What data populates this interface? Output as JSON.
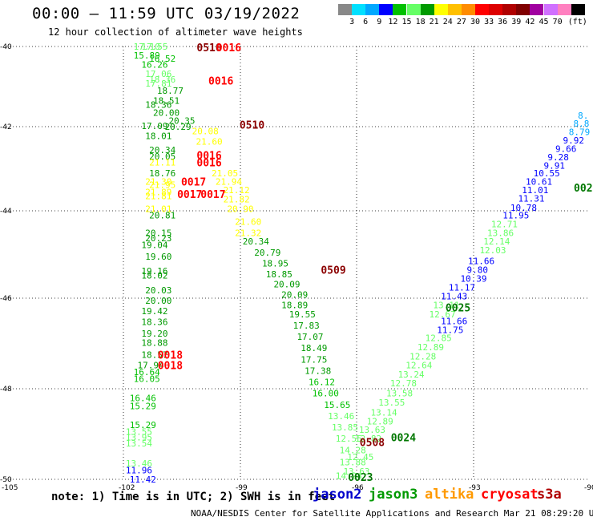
{
  "chart_data": {
    "type": "scatter",
    "title": "00:00 – 11:59 UTC 03/19/2022",
    "subtitle": "12 hour collection of altimeter wave heights",
    "note": "note: 1) Time is in UTC; 2) SWH is in feet",
    "credit": "NOAA/NESDIS Center for Satellite Applications and Research   Mar 21 08:29:20 UTC 2022",
    "xlim": [
      -105,
      -90
    ],
    "ylim": [
      -50,
      -40
    ],
    "x_ticks": [
      "-105",
      "-102",
      "-99",
      "-96",
      "-93",
      "-90"
    ],
    "y_ticks": [
      "-40",
      "-42",
      "-44",
      "-46",
      "-48",
      "-50"
    ],
    "grid": true,
    "colorbar": {
      "unit": "(ft)",
      "colors": [
        "#888888",
        "#00e0ff",
        "#00a8ff",
        "#0000ff",
        "#00c000",
        "#66ff66",
        "#009a00",
        "#ffff00",
        "#ffc000",
        "#ff8c00",
        "#ff0000",
        "#dd0000",
        "#b00000",
        "#800000",
        "#a000a0",
        "#d070ff",
        "#ff80c0",
        "#000000"
      ],
      "labels": [
        "3",
        "6",
        "9",
        "12",
        "15",
        "18",
        "21",
        "24",
        "27",
        "30",
        "33",
        "36",
        "39",
        "42",
        "45",
        "70"
      ]
    },
    "satellites": [
      {
        "name": "jason2",
        "color": "#0000cc"
      },
      {
        "name": "jason3",
        "color": "#009900"
      },
      {
        "name": "altika",
        "color": "#ff9900"
      },
      {
        "name": "cryosat",
        "color": "#ff0000"
      },
      {
        "name": "s3a",
        "color": "#b00000"
      }
    ],
    "time_labels": [
      {
        "text": "0510",
        "lon": -99.8,
        "lat": -40.02,
        "color": "#8b0000"
      },
      {
        "text": "0016",
        "lon": -99.3,
        "lat": -40.02,
        "color": "#ff0000"
      },
      {
        "text": "0016",
        "lon": -99.5,
        "lat": -40.85,
        "color": "#ff0000"
      },
      {
        "text": "0510",
        "lon": -98.7,
        "lat": -41.95,
        "color": "#8b0000"
      },
      {
        "text": "0016",
        "lon": -99.8,
        "lat": -42.68,
        "color": "#ff0000"
      },
      {
        "text": "0016",
        "lon": -99.8,
        "lat": -42.85,
        "color": "#ff0000"
      },
      {
        "text": "0017",
        "lon": -100.2,
        "lat": -43.3,
        "color": "#ff0000"
      },
      {
        "text": "0017",
        "lon": -100.3,
        "lat": -43.6,
        "color": "#ff0000"
      },
      {
        "text": "0017",
        "lon": -99.7,
        "lat": -43.6,
        "color": "#ff0000"
      },
      {
        "text": "0509",
        "lon": -96.6,
        "lat": -45.35,
        "color": "#8b0000"
      },
      {
        "text": "0018",
        "lon": -100.8,
        "lat": -47.25,
        "color": "#ff0000"
      },
      {
        "text": "0018",
        "lon": -100.8,
        "lat": -47.48,
        "color": "#ff0000"
      },
      {
        "text": "0508",
        "lon": -95.6,
        "lat": -49.18,
        "color": "#8b0000"
      },
      {
        "text": "0024",
        "lon": -94.8,
        "lat": -49.07,
        "color": "#007700"
      },
      {
        "text": "0023",
        "lon": -95.9,
        "lat": -49.95,
        "color": "#007700"
      },
      {
        "text": "0025",
        "lon": -93.4,
        "lat": -46.2,
        "color": "#007700"
      },
      {
        "text": "002",
        "lon": -90.15,
        "lat": -43.45,
        "color": "#007700"
      }
    ],
    "points": [
      {
        "lon": -101.4,
        "lat": -40.0,
        "v": "17.10",
        "c": "#66ff66"
      },
      {
        "lon": -101.2,
        "lat": -40.0,
        "v": "17.55",
        "c": "#66ff66"
      },
      {
        "lon": -101.4,
        "lat": -40.22,
        "v": "15.89",
        "c": "#00c000"
      },
      {
        "lon": -101.0,
        "lat": -40.3,
        "v": "16.52",
        "c": "#00c000"
      },
      {
        "lon": -101.2,
        "lat": -40.45,
        "v": "16.26",
        "c": "#00c000"
      },
      {
        "lon": -101.1,
        "lat": -40.68,
        "v": "17.06",
        "c": "#66ff66"
      },
      {
        "lon": -101.0,
        "lat": -40.82,
        "v": "18.36",
        "c": "#66ff66"
      },
      {
        "lon": -101.1,
        "lat": -40.92,
        "v": "17.81",
        "c": "#66ff66"
      },
      {
        "lon": -100.8,
        "lat": -41.1,
        "v": "18.77",
        "c": "#009a00"
      },
      {
        "lon": -100.9,
        "lat": -41.35,
        "v": "18.51",
        "c": "#009a00"
      },
      {
        "lon": -101.1,
        "lat": -41.45,
        "v": "18.36",
        "c": "#009a00"
      },
      {
        "lon": -100.9,
        "lat": -41.65,
        "v": "20.00",
        "c": "#009a00"
      },
      {
        "lon": -100.5,
        "lat": -41.85,
        "v": "20.35",
        "c": "#009a00"
      },
      {
        "lon": -101.2,
        "lat": -41.98,
        "v": "17.09",
        "c": "#009a00"
      },
      {
        "lon": -100.6,
        "lat": -42.0,
        "v": "20.29",
        "c": "#009a00"
      },
      {
        "lon": -99.9,
        "lat": -42.1,
        "v": "20.08",
        "c": "#ffff00"
      },
      {
        "lon": -101.1,
        "lat": -42.22,
        "v": "18.01",
        "c": "#009a00"
      },
      {
        "lon": -99.8,
        "lat": -42.35,
        "v": "21.60",
        "c": "#ffff00"
      },
      {
        "lon": -101.0,
        "lat": -42.55,
        "v": "20.34",
        "c": "#009a00"
      },
      {
        "lon": -101.0,
        "lat": -42.7,
        "v": "20.05",
        "c": "#009a00"
      },
      {
        "lon": -101.0,
        "lat": -42.85,
        "v": "21.11",
        "c": "#ffff00"
      },
      {
        "lon": -101.0,
        "lat": -43.1,
        "v": "18.76",
        "c": "#009a00"
      },
      {
        "lon": -99.4,
        "lat": -43.1,
        "v": "21.05",
        "c": "#ffff00"
      },
      {
        "lon": -101.1,
        "lat": -43.3,
        "v": "21.30",
        "c": "#ffff00"
      },
      {
        "lon": -101.0,
        "lat": -43.38,
        "v": "21.95",
        "c": "#ffff00"
      },
      {
        "lon": -99.3,
        "lat": -43.3,
        "v": "21.94",
        "c": "#ffff00"
      },
      {
        "lon": -99.1,
        "lat": -43.5,
        "v": "21.12",
        "c": "#ffff00"
      },
      {
        "lon": -101.1,
        "lat": -43.55,
        "v": "21.89",
        "c": "#ffff00"
      },
      {
        "lon": -101.1,
        "lat": -43.65,
        "v": "21.81",
        "c": "#ffff00"
      },
      {
        "lon": -99.1,
        "lat": -43.72,
        "v": "21.82",
        "c": "#ffff00"
      },
      {
        "lon": -101.1,
        "lat": -43.95,
        "v": "21.01",
        "c": "#ffff00"
      },
      {
        "lon": -99.0,
        "lat": -43.95,
        "v": "20.90",
        "c": "#ffff00"
      },
      {
        "lon": -101.0,
        "lat": -44.1,
        "v": "20.81",
        "c": "#009a00"
      },
      {
        "lon": -98.8,
        "lat": -44.25,
        "v": "21.60",
        "c": "#ffff00"
      },
      {
        "lon": -98.8,
        "lat": -44.5,
        "v": "21.32",
        "c": "#ffff00"
      },
      {
        "lon": -101.1,
        "lat": -44.5,
        "v": "20.15",
        "c": "#009a00"
      },
      {
        "lon": -101.1,
        "lat": -44.62,
        "v": "20.23",
        "c": "#009a00"
      },
      {
        "lon": -101.2,
        "lat": -44.78,
        "v": "19.04",
        "c": "#009a00"
      },
      {
        "lon": -98.6,
        "lat": -44.7,
        "v": "20.34",
        "c": "#009a00"
      },
      {
        "lon": -101.1,
        "lat": -45.05,
        "v": "19.60",
        "c": "#009a00"
      },
      {
        "lon": -98.3,
        "lat": -44.95,
        "v": "20.79",
        "c": "#009a00"
      },
      {
        "lon": -98.1,
        "lat": -45.2,
        "v": "18.95",
        "c": "#009a00"
      },
      {
        "lon": -101.2,
        "lat": -45.38,
        "v": "19.16",
        "c": "#009a00"
      },
      {
        "lon": -101.2,
        "lat": -45.48,
        "v": "18.02",
        "c": "#009a00"
      },
      {
        "lon": -98.0,
        "lat": -45.45,
        "v": "18.85",
        "c": "#009a00"
      },
      {
        "lon": -97.8,
        "lat": -45.68,
        "v": "20.09",
        "c": "#009a00"
      },
      {
        "lon": -101.1,
        "lat": -45.82,
        "v": "20.03",
        "c": "#009a00"
      },
      {
        "lon": -97.6,
        "lat": -45.92,
        "v": "20.09",
        "c": "#009a00"
      },
      {
        "lon": -101.1,
        "lat": -46.05,
        "v": "20.00",
        "c": "#009a00"
      },
      {
        "lon": -97.6,
        "lat": -46.15,
        "v": "18.89",
        "c": "#009a00"
      },
      {
        "lon": -101.2,
        "lat": -46.28,
        "v": "19.42",
        "c": "#009a00"
      },
      {
        "lon": -97.4,
        "lat": -46.35,
        "v": "19.55",
        "c": "#009a00"
      },
      {
        "lon": -101.2,
        "lat": -46.52,
        "v": "18.36",
        "c": "#009a00"
      },
      {
        "lon": -97.3,
        "lat": -46.6,
        "v": "17.83",
        "c": "#009a00"
      },
      {
        "lon": -101.2,
        "lat": -46.78,
        "v": "19.20",
        "c": "#009a00"
      },
      {
        "lon": -97.2,
        "lat": -46.85,
        "v": "17.07",
        "c": "#009a00"
      },
      {
        "lon": -101.2,
        "lat": -46.98,
        "v": "18.88",
        "c": "#009a00"
      },
      {
        "lon": -97.1,
        "lat": -47.1,
        "v": "18.49",
        "c": "#009a00"
      },
      {
        "lon": -101.2,
        "lat": -47.25,
        "v": "18.57",
        "c": "#009a00"
      },
      {
        "lon": -97.1,
        "lat": -47.35,
        "v": "17.75",
        "c": "#009a00"
      },
      {
        "lon": -101.3,
        "lat": -47.48,
        "v": "17.94",
        "c": "#009a00"
      },
      {
        "lon": -97.0,
        "lat": -47.6,
        "v": "17.38",
        "c": "#009a00"
      },
      {
        "lon": -101.4,
        "lat": -47.63,
        "v": "16.64",
        "c": "#00c000"
      },
      {
        "lon": -101.4,
        "lat": -47.78,
        "v": "16.05",
        "c": "#00c000"
      },
      {
        "lon": -96.9,
        "lat": -47.85,
        "v": "16.12",
        "c": "#00c000"
      },
      {
        "lon": -96.8,
        "lat": -48.1,
        "v": "16.00",
        "c": "#00c000"
      },
      {
        "lon": -101.5,
        "lat": -48.2,
        "v": "16.46",
        "c": "#00c000"
      },
      {
        "lon": -101.5,
        "lat": -48.38,
        "v": "15.29",
        "c": "#00c000"
      },
      {
        "lon": -96.5,
        "lat": -48.35,
        "v": "15.65",
        "c": "#00c000"
      },
      {
        "lon": -96.4,
        "lat": -48.6,
        "v": "13.46",
        "c": "#66ff66"
      },
      {
        "lon": -101.5,
        "lat": -48.8,
        "v": "15.29",
        "c": "#00c000"
      },
      {
        "lon": -96.3,
        "lat": -48.85,
        "v": "13.85",
        "c": "#66ff66"
      },
      {
        "lon": -101.6,
        "lat": -48.95,
        "v": "13.55",
        "c": "#66ff66"
      },
      {
        "lon": -101.6,
        "lat": -49.07,
        "v": "13.95",
        "c": "#66ff66"
      },
      {
        "lon": -96.2,
        "lat": -49.1,
        "v": "12.55",
        "c": "#66ff66"
      },
      {
        "lon": -101.6,
        "lat": -49.2,
        "v": "13.54",
        "c": "#66ff66"
      },
      {
        "lon": -96.1,
        "lat": -49.35,
        "v": "14.28",
        "c": "#66ff66"
      },
      {
        "lon": -101.6,
        "lat": -49.65,
        "v": "13.46",
        "c": "#66ff66"
      },
      {
        "lon": -101.6,
        "lat": -49.8,
        "v": "11.96",
        "c": "#0000ff"
      },
      {
        "lon": -101.5,
        "lat": -50.0,
        "v": "11.42",
        "c": "#0000ff"
      },
      {
        "lon": -96.2,
        "lat": -49.92,
        "v": "14.24",
        "c": "#66ff66"
      },
      {
        "lon": -96.0,
        "lat": -49.82,
        "v": "13.63",
        "c": "#66ff66"
      },
      {
        "lon": -96.1,
        "lat": -49.62,
        "v": "13.88",
        "c": "#66ff66"
      },
      {
        "lon": -95.9,
        "lat": -49.5,
        "v": "12.45",
        "c": "#66ff66"
      },
      {
        "lon": -95.7,
        "lat": -49.1,
        "v": "12.82",
        "c": "#66ff66"
      },
      {
        "lon": -95.6,
        "lat": -48.9,
        "v": "13.63",
        "c": "#66ff66"
      },
      {
        "lon": -95.4,
        "lat": -48.72,
        "v": "12.89",
        "c": "#66ff66"
      },
      {
        "lon": -95.3,
        "lat": -48.52,
        "v": "13.14",
        "c": "#66ff66"
      },
      {
        "lon": -95.1,
        "lat": -48.3,
        "v": "13.55",
        "c": "#66ff66"
      },
      {
        "lon": -94.9,
        "lat": -48.1,
        "v": "13.58",
        "c": "#66ff66"
      },
      {
        "lon": -94.8,
        "lat": -47.88,
        "v": "12.78",
        "c": "#66ff66"
      },
      {
        "lon": -94.6,
        "lat": -47.68,
        "v": "13.24",
        "c": "#66ff66"
      },
      {
        "lon": -94.4,
        "lat": -47.48,
        "v": "12.64",
        "c": "#66ff66"
      },
      {
        "lon": -94.3,
        "lat": -47.28,
        "v": "12.28",
        "c": "#66ff66"
      },
      {
        "lon": -94.1,
        "lat": -47.08,
        "v": "12.89",
        "c": "#66ff66"
      },
      {
        "lon": -93.9,
        "lat": -46.88,
        "v": "12.85",
        "c": "#66ff66"
      },
      {
        "lon": -93.6,
        "lat": -46.7,
        "v": "11.75",
        "c": "#0000ff"
      },
      {
        "lon": -93.5,
        "lat": -46.5,
        "v": "11.66",
        "c": "#0000ff"
      },
      {
        "lon": -93.8,
        "lat": -46.35,
        "v": "12.67",
        "c": "#66ff66"
      },
      {
        "lon": -93.7,
        "lat": -46.15,
        "v": "13.11",
        "c": "#66ff66"
      },
      {
        "lon": -93.5,
        "lat": -45.95,
        "v": "11.43",
        "c": "#0000ff"
      },
      {
        "lon": -93.3,
        "lat": -45.75,
        "v": "11.17",
        "c": "#0000ff"
      },
      {
        "lon": -93.0,
        "lat": -45.55,
        "v": "10.39",
        "c": "#0000ff"
      },
      {
        "lon": -92.9,
        "lat": -45.35,
        "v": "9.80",
        "c": "#0000ff"
      },
      {
        "lon": -92.8,
        "lat": -45.15,
        "v": "11.66",
        "c": "#0000ff"
      },
      {
        "lon": -92.5,
        "lat": -44.9,
        "v": "12.03",
        "c": "#66ff66"
      },
      {
        "lon": -92.4,
        "lat": -44.7,
        "v": "12.14",
        "c": "#66ff66"
      },
      {
        "lon": -92.3,
        "lat": -44.5,
        "v": "13.86",
        "c": "#66ff66"
      },
      {
        "lon": -92.2,
        "lat": -44.3,
        "v": "12.71",
        "c": "#66ff66"
      },
      {
        "lon": -91.9,
        "lat": -44.1,
        "v": "11.95",
        "c": "#0000ff"
      },
      {
        "lon": -91.7,
        "lat": -43.92,
        "v": "10.78",
        "c": "#0000ff"
      },
      {
        "lon": -91.5,
        "lat": -43.7,
        "v": "11.31",
        "c": "#0000ff"
      },
      {
        "lon": -91.4,
        "lat": -43.5,
        "v": "11.01",
        "c": "#0000ff"
      },
      {
        "lon": -91.3,
        "lat": -43.3,
        "v": "10.61",
        "c": "#0000ff"
      },
      {
        "lon": -91.1,
        "lat": -43.1,
        "v": "10.55",
        "c": "#0000ff"
      },
      {
        "lon": -90.9,
        "lat": -42.92,
        "v": "9.91",
        "c": "#0000ff"
      },
      {
        "lon": -90.8,
        "lat": -42.72,
        "v": "9.28",
        "c": "#0000ff"
      },
      {
        "lon": -90.6,
        "lat": -42.52,
        "v": "9.66",
        "c": "#0000ff"
      },
      {
        "lon": -90.4,
        "lat": -42.32,
        "v": "9.92",
        "c": "#0000ff"
      },
      {
        "lon": -90.25,
        "lat": -42.12,
        "v": "8.79",
        "c": "#00a8ff"
      },
      {
        "lon": -90.2,
        "lat": -41.92,
        "v": "8.8",
        "c": "#00a8ff"
      },
      {
        "lon": -90.15,
        "lat": -41.72,
        "v": "8.",
        "c": "#00a8ff"
      }
    ]
  }
}
